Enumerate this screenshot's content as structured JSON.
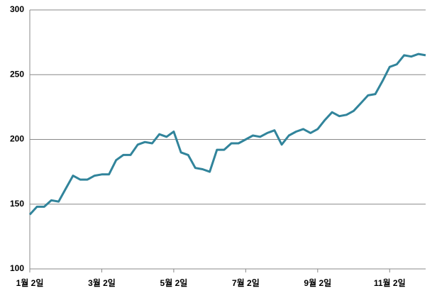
{
  "chart_data": {
    "type": "line",
    "categories": [
      "1월 2일",
      null,
      null,
      null,
      null,
      null,
      null,
      null,
      null,
      null,
      "3월 2일",
      null,
      null,
      null,
      null,
      null,
      null,
      null,
      null,
      null,
      "5월 2일",
      null,
      null,
      null,
      null,
      null,
      null,
      null,
      null,
      null,
      "7월 2일",
      null,
      null,
      null,
      null,
      null,
      null,
      null,
      null,
      null,
      "9월 2일",
      null,
      null,
      null,
      null,
      null,
      null,
      null,
      null,
      null,
      "11월 2일",
      null,
      null,
      null,
      null,
      null
    ],
    "values": [
      142,
      148,
      148,
      153,
      152,
      162,
      172,
      169,
      169,
      172,
      173,
      173,
      184,
      188,
      188,
      196,
      198,
      197,
      204,
      202,
      206,
      190,
      188,
      178,
      177,
      175,
      192,
      192,
      197,
      197,
      200,
      203,
      202,
      205,
      207,
      196,
      203,
      206,
      208,
      205,
      208,
      215,
      221,
      218,
      219,
      222,
      228,
      234,
      235,
      245,
      256,
      258,
      265,
      264,
      266,
      265
    ],
    "color": "#31849b",
    "ylim": [
      100,
      300
    ],
    "yticks": [
      100,
      150,
      200,
      250,
      300
    ],
    "grid": true
  }
}
